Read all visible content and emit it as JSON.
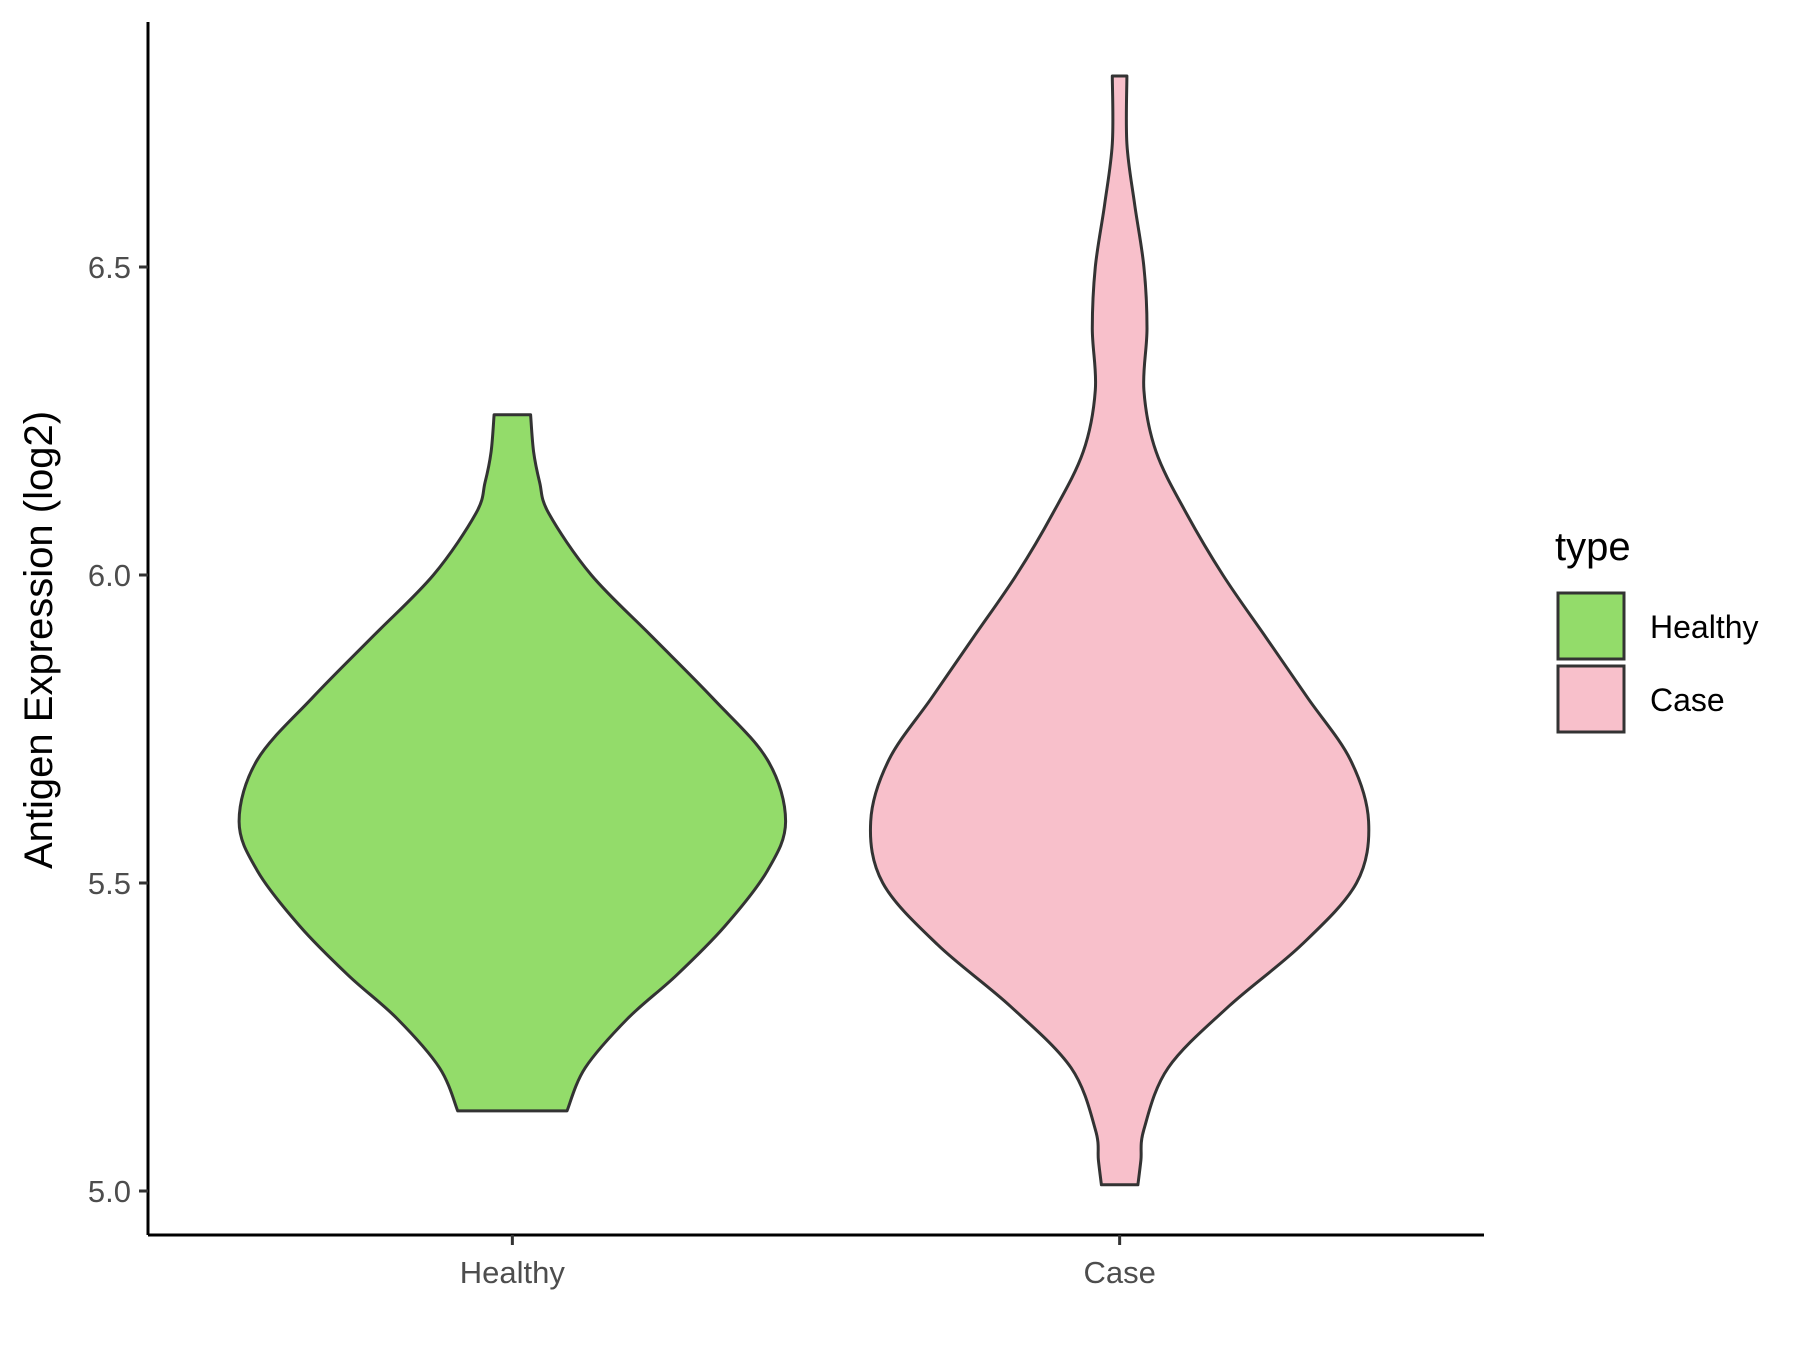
{
  "chart_data": {
    "type": "violin",
    "ylabel": "Antigen Expression (log2)",
    "xlabel": "",
    "ylim": [
      4.93,
      6.93
    ],
    "yticks": [
      "5.0",
      "5.5",
      "6.0",
      "6.5"
    ],
    "categories": [
      "Healthy",
      "Case"
    ],
    "legend": {
      "title": "type",
      "position": "right",
      "entries": [
        "Healthy",
        "Case"
      ]
    },
    "series": [
      {
        "name": "Healthy",
        "color": "#93dc6a",
        "range": [
          5.13,
          6.26
        ],
        "max_half_width": 0.45,
        "profile": [
          [
            5.13,
            0.09
          ],
          [
            5.2,
            0.12
          ],
          [
            5.28,
            0.19
          ],
          [
            5.35,
            0.27
          ],
          [
            5.43,
            0.35
          ],
          [
            5.52,
            0.42
          ],
          [
            5.6,
            0.45
          ],
          [
            5.7,
            0.42
          ],
          [
            5.8,
            0.33
          ],
          [
            5.9,
            0.23
          ],
          [
            6.0,
            0.13
          ],
          [
            6.1,
            0.06
          ],
          [
            6.15,
            0.045
          ],
          [
            6.2,
            0.035
          ],
          [
            6.26,
            0.03
          ]
        ]
      },
      {
        "name": "Case",
        "color": "#f8c0cb",
        "range": [
          5.01,
          6.81
        ],
        "max_half_width": 0.41,
        "profile": [
          [
            5.01,
            0.03
          ],
          [
            5.05,
            0.035
          ],
          [
            5.1,
            0.04
          ],
          [
            5.2,
            0.08
          ],
          [
            5.3,
            0.18
          ],
          [
            5.4,
            0.3
          ],
          [
            5.5,
            0.39
          ],
          [
            5.6,
            0.41
          ],
          [
            5.7,
            0.38
          ],
          [
            5.8,
            0.31
          ],
          [
            5.9,
            0.24
          ],
          [
            6.0,
            0.17
          ],
          [
            6.1,
            0.11
          ],
          [
            6.2,
            0.06
          ],
          [
            6.3,
            0.04
          ],
          [
            6.4,
            0.045
          ],
          [
            6.5,
            0.04
          ],
          [
            6.6,
            0.025
          ],
          [
            6.7,
            0.012
          ],
          [
            6.81,
            0.012
          ]
        ]
      }
    ]
  }
}
